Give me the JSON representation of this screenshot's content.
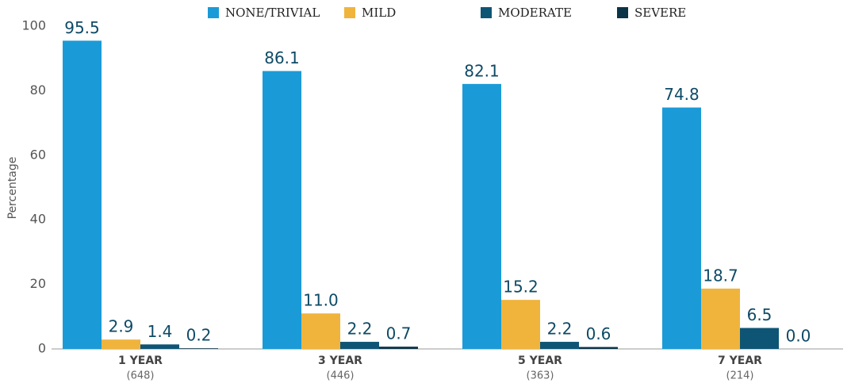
{
  "chart_data": {
    "type": "bar",
    "y_label": "Percentage",
    "categories": [
      "1 YEAR",
      "3 YEAR",
      "5 YEAR",
      "7 YEAR"
    ],
    "category_sublabels": [
      "(648)",
      "(446)",
      "(363)",
      "(214)"
    ],
    "series": [
      {
        "name": "NONE/TRIVIAL",
        "color": "#1a9bd7",
        "values": [
          95.5,
          86.1,
          82.1,
          74.8
        ],
        "value_labels": [
          "95.5",
          "86.1",
          "82.1",
          "74.8"
        ]
      },
      {
        "name": "MILD",
        "color": "#f0b43c",
        "values": [
          2.9,
          11.0,
          15.2,
          18.7
        ],
        "value_labels": [
          "2.9",
          "11.0",
          "15.2",
          "18.7"
        ]
      },
      {
        "name": "MODERATE",
        "color": "#0e5575",
        "values": [
          1.4,
          2.2,
          2.2,
          6.5
        ],
        "value_labels": [
          "1.4",
          "2.2",
          "2.2",
          "6.5"
        ]
      },
      {
        "name": "SEVERE",
        "color": "#0b3448",
        "values": [
          0.2,
          0.7,
          0.6,
          0.0
        ],
        "value_labels": [
          "0.2",
          "0.7",
          "0.6",
          "0.0"
        ]
      }
    ],
    "ylim": [
      0,
      100
    ],
    "yticks": [
      0,
      20,
      40,
      60,
      80,
      100
    ],
    "grid": false,
    "legend": "top"
  }
}
